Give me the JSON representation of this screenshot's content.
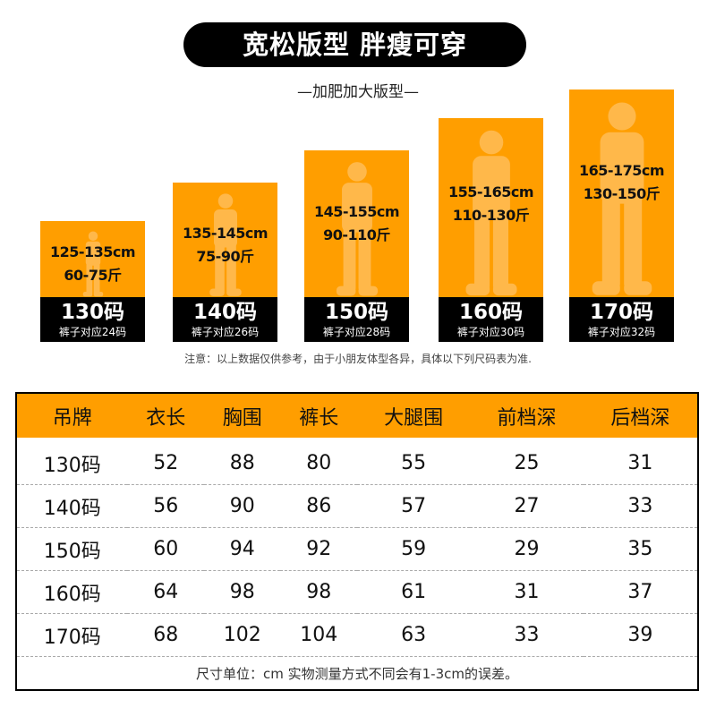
{
  "title": "宽松版型 胖瘦可穿",
  "subtitle": "—加肥加大版型—",
  "accent_color": "#ff9e00",
  "cards": [
    {
      "height": "125-135cm",
      "weight": "60-75斤",
      "size": "130码",
      "pants": "裤子对应24码"
    },
    {
      "height": "135-145cm",
      "weight": "75-90斤",
      "size": "140码",
      "pants": "裤子对应26码"
    },
    {
      "height": "145-155cm",
      "weight": "90-110斤",
      "size": "150码",
      "pants": "裤子对应28码"
    },
    {
      "height": "155-165cm",
      "weight": "110-130斤",
      "size": "160码",
      "pants": "裤子对应30码"
    },
    {
      "height": "165-175cm",
      "weight": "130-150斤",
      "size": "170码",
      "pants": "裤子对应32码"
    }
  ],
  "note": "注意：以上数据仅供参考，由于小朋友体型各异，具体以下列尺码表为准.",
  "table": {
    "headers": [
      "吊牌",
      "衣长",
      "胸围",
      "裤长",
      "大腿围",
      "前档深",
      "后档深"
    ],
    "rows": [
      [
        "130码",
        "52",
        "88",
        "80",
        "55",
        "25",
        "31"
      ],
      [
        "140码",
        "56",
        "90",
        "86",
        "57",
        "27",
        "33"
      ],
      [
        "150码",
        "60",
        "94",
        "92",
        "59",
        "29",
        "35"
      ],
      [
        "160码",
        "64",
        "98",
        "98",
        "61",
        "31",
        "37"
      ],
      [
        "170码",
        "68",
        "102",
        "104",
        "63",
        "33",
        "39"
      ]
    ],
    "footer": "尺寸单位：cm   实物测量方式不同会有1-3cm的误差。"
  }
}
